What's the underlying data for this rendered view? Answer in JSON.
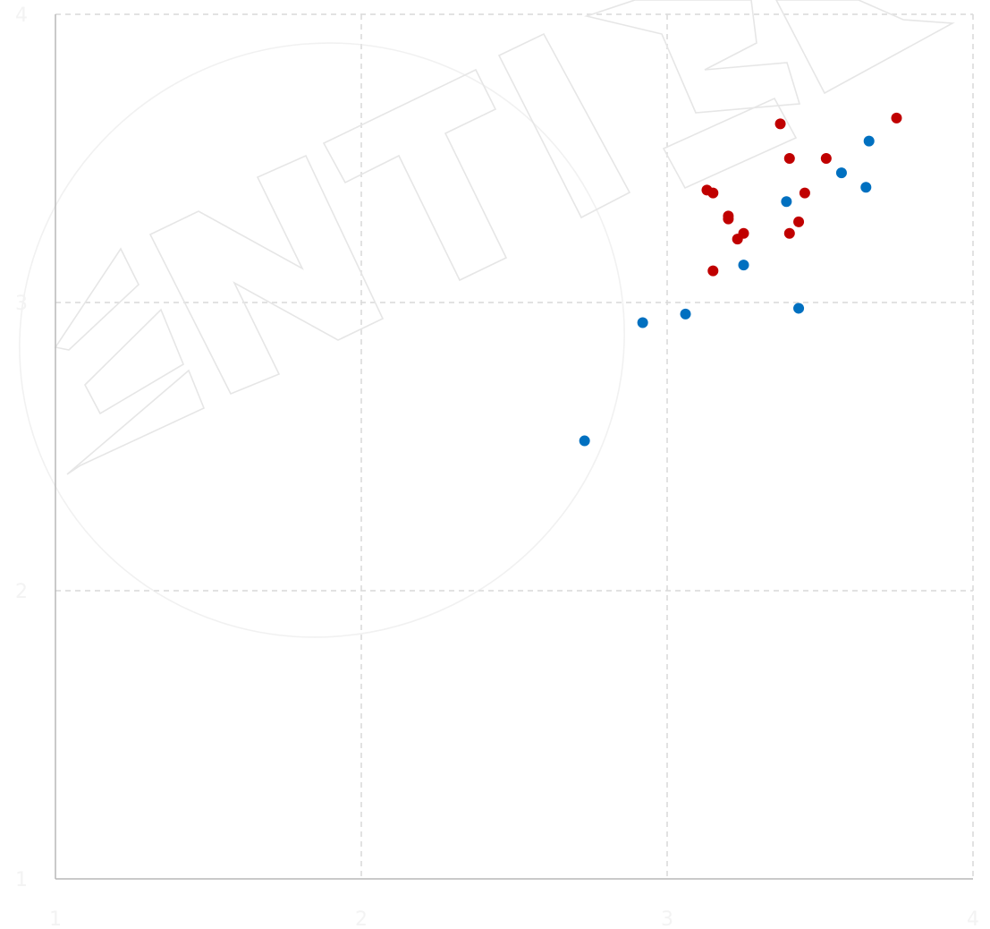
{
  "chart_data": {
    "type": "scatter",
    "title": "",
    "xlabel": "",
    "ylabel": "",
    "xlim": [
      1,
      4
    ],
    "ylim": [
      1,
      4
    ],
    "x_ticks": [
      "1",
      "2",
      "3",
      "4"
    ],
    "y_ticks": [
      "1",
      "2",
      "3",
      "4"
    ],
    "grid": true,
    "legend": "none",
    "series": [
      {
        "color": "#c00000",
        "points": [
          {
            "x": 3.37,
            "y": 3.62
          },
          {
            "x": 3.75,
            "y": 3.64
          },
          {
            "x": 3.4,
            "y": 3.5
          },
          {
            "x": 3.52,
            "y": 3.5
          },
          {
            "x": 3.13,
            "y": 3.39
          },
          {
            "x": 3.15,
            "y": 3.38
          },
          {
            "x": 3.45,
            "y": 3.38
          },
          {
            "x": 3.2,
            "y": 3.3
          },
          {
            "x": 3.2,
            "y": 3.29
          },
          {
            "x": 3.43,
            "y": 3.28
          },
          {
            "x": 3.25,
            "y": 3.24
          },
          {
            "x": 3.4,
            "y": 3.24
          },
          {
            "x": 3.23,
            "y": 3.22
          },
          {
            "x": 3.15,
            "y": 3.11
          }
        ]
      },
      {
        "color": "#0070c0",
        "points": [
          {
            "x": 3.66,
            "y": 3.56
          },
          {
            "x": 3.57,
            "y": 3.45
          },
          {
            "x": 3.65,
            "y": 3.4
          },
          {
            "x": 3.39,
            "y": 3.35
          },
          {
            "x": 3.25,
            "y": 3.13
          },
          {
            "x": 3.43,
            "y": 2.98
          },
          {
            "x": 3.06,
            "y": 2.96
          },
          {
            "x": 2.92,
            "y": 2.93
          },
          {
            "x": 2.73,
            "y": 2.52
          }
        ]
      }
    ]
  }
}
